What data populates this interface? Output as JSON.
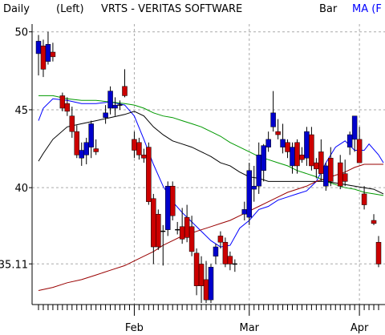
{
  "header": {
    "period": "Daily",
    "axis_side": "(Left)",
    "title": "VRTS - VERITAS SOFTWARE",
    "type_label": "Bar",
    "ma_label": "MA (F"
  },
  "colors": {
    "up": "#0000cc",
    "down": "#cc0000",
    "ma_blue": "#0000ff",
    "ma_black": "#000000",
    "ma_green": "#009900",
    "ma_red": "#990000",
    "grid": "#aaaaaa",
    "ma_label": "#0000ff"
  },
  "chart_data": {
    "type": "candlestick",
    "title": "VRTS - VERITAS SOFTWARE",
    "ylim": [
      32.5,
      50.5
    ],
    "yticks": [
      50,
      45,
      40,
      35.11
    ],
    "ytick_labels": [
      "50",
      "45",
      "40",
      "35.11"
    ],
    "xtick_labels": [
      "Feb",
      "Mar",
      "Apr"
    ],
    "xtick_index": [
      20,
      44,
      67
    ],
    "grid": true,
    "candles": [
      {
        "o": 48.6,
        "h": 49.8,
        "l": 47.2,
        "c": 49.4
      },
      {
        "o": 49.1,
        "h": 49.5,
        "l": 47.1,
        "c": 47.6
      },
      {
        "o": 48.1,
        "h": 50.0,
        "l": 47.9,
        "c": 49.2
      },
      {
        "o": 48.7,
        "h": 49.3,
        "l": 48.1,
        "c": 48.4
      },
      {
        "o": null,
        "h": null,
        "l": null,
        "c": null
      },
      {
        "o": 45.9,
        "h": 46.1,
        "l": 44.9,
        "c": 45.1
      },
      {
        "o": 45.4,
        "h": 45.8,
        "l": 44.6,
        "c": 44.9
      },
      {
        "o": 44.6,
        "h": 45.2,
        "l": 43.2,
        "c": 43.6
      },
      {
        "o": 43.6,
        "h": 44.0,
        "l": 41.9,
        "c": 42.1
      },
      {
        "o": 41.9,
        "h": 42.9,
        "l": 41.4,
        "c": 42.4
      },
      {
        "o": 42.1,
        "h": 43.2,
        "l": 41.5,
        "c": 42.9
      },
      {
        "o": 42.6,
        "h": 44.3,
        "l": 41.9,
        "c": 44.1
      },
      {
        "o": 42.5,
        "h": 43.1,
        "l": 42.1,
        "c": 42.3
      },
      {
        "o": null,
        "h": null,
        "l": null,
        "c": null
      },
      {
        "o": 44.5,
        "h": 45.3,
        "l": 44.1,
        "c": 44.8
      },
      {
        "o": 45.1,
        "h": 46.5,
        "l": 44.7,
        "c": 46.2
      },
      {
        "o": 45.1,
        "h": 45.8,
        "l": 44.6,
        "c": 45.3
      },
      {
        "o": 45.3,
        "h": 45.6,
        "l": 45.0,
        "c": 45.3
      },
      {
        "o": 46.5,
        "h": 47.6,
        "l": 45.8,
        "c": 45.9
      },
      {
        "o": null,
        "h": null,
        "l": null,
        "c": null
      },
      {
        "o": 43.1,
        "h": 43.6,
        "l": 41.9,
        "c": 42.4
      },
      {
        "o": 42.9,
        "h": 43.2,
        "l": 41.8,
        "c": 42.1
      },
      {
        "o": 42.1,
        "h": 42.5,
        "l": 41.6,
        "c": 41.9
      },
      {
        "o": 42.6,
        "h": 42.9,
        "l": 38.9,
        "c": 39.1
      },
      {
        "o": 39.3,
        "h": 39.6,
        "l": 35.1,
        "c": 36.2
      },
      {
        "o": 38.3,
        "h": 38.6,
        "l": 36.0,
        "c": 36.2
      },
      {
        "o": 37.2,
        "h": 37.6,
        "l": 35.0,
        "c": 37.2
      },
      {
        "o": 37.3,
        "h": 40.4,
        "l": 36.9,
        "c": 40.1
      },
      {
        "o": 40.1,
        "h": 40.4,
        "l": 37.9,
        "c": 38.2
      },
      {
        "o": 37.3,
        "h": 37.8,
        "l": 37.0,
        "c": 37.3
      },
      {
        "o": 37.5,
        "h": 38.7,
        "l": 36.4,
        "c": 36.7
      },
      {
        "o": 38.1,
        "h": 38.9,
        "l": 36.5,
        "c": 36.8
      },
      {
        "o": 37.5,
        "h": 38.2,
        "l": 35.6,
        "c": 35.9
      },
      {
        "o": 35.8,
        "h": 36.1,
        "l": 33.1,
        "c": 33.7
      },
      {
        "o": 35.1,
        "h": 35.6,
        "l": 32.6,
        "c": 33.7
      },
      {
        "o": 34.1,
        "h": 35.3,
        "l": 32.6,
        "c": 32.8
      },
      {
        "o": 32.8,
        "h": 35.1,
        "l": 32.6,
        "c": 34.9
      },
      {
        "o": 35.6,
        "h": 36.4,
        "l": 35.1,
        "c": 36.2
      },
      {
        "o": 36.9,
        "h": 37.2,
        "l": 36.1,
        "c": 36.5
      },
      {
        "o": 36.5,
        "h": 36.8,
        "l": 34.9,
        "c": 35.1
      },
      {
        "o": 35.6,
        "h": 35.9,
        "l": 34.7,
        "c": 35.1
      },
      {
        "o": 35.1,
        "h": 35.4,
        "l": 34.6,
        "c": 35.1
      },
      {
        "o": null,
        "h": null,
        "l": null,
        "c": null
      },
      {
        "o": 38.3,
        "h": 39.1,
        "l": 37.9,
        "c": 38.6
      },
      {
        "o": 38.1,
        "h": 41.6,
        "l": 37.6,
        "c": 41.1
      },
      {
        "o": 39.9,
        "h": 41.4,
        "l": 39.1,
        "c": 40.1
      },
      {
        "o": 40.1,
        "h": 42.9,
        "l": 39.6,
        "c": 42.1
      },
      {
        "o": 41.1,
        "h": 42.8,
        "l": 40.4,
        "c": 42.7
      },
      {
        "o": 42.6,
        "h": 43.6,
        "l": 42.3,
        "c": 43.1
      },
      {
        "o": 43.9,
        "h": 46.2,
        "l": 43.6,
        "c": 44.8
      },
      {
        "o": 43.6,
        "h": 44.4,
        "l": 43.1,
        "c": 43.4
      },
      {
        "o": 42.6,
        "h": 44.1,
        "l": 42.2,
        "c": 43.1
      },
      {
        "o": 42.9,
        "h": 43.1,
        "l": 41.9,
        "c": 42.3
      },
      {
        "o": 41.4,
        "h": 42.9,
        "l": 40.9,
        "c": 42.6
      },
      {
        "o": 42.9,
        "h": 43.1,
        "l": 40.9,
        "c": 41.4
      },
      {
        "o": 42.1,
        "h": 42.6,
        "l": 41.6,
        "c": 41.8
      },
      {
        "o": 41.9,
        "h": 43.9,
        "l": 41.4,
        "c": 43.6
      },
      {
        "o": 43.4,
        "h": 43.9,
        "l": 41.1,
        "c": 41.4
      },
      {
        "o": 41.6,
        "h": 41.9,
        "l": 40.6,
        "c": 41.2
      },
      {
        "o": 42.3,
        "h": 43.1,
        "l": 40.4,
        "c": 40.9
      },
      {
        "o": 40.1,
        "h": 41.6,
        "l": 39.8,
        "c": 41.4
      },
      {
        "o": 41.9,
        "h": 42.6,
        "l": 40.1,
        "c": 40.4
      },
      {
        "o": null,
        "h": null,
        "l": null,
        "c": null
      },
      {
        "o": 41.6,
        "h": 42.1,
        "l": 39.9,
        "c": 40.1
      },
      {
        "o": 40.9,
        "h": 41.8,
        "l": 40.1,
        "c": 40.4
      },
      {
        "o": 42.6,
        "h": 43.6,
        "l": 42.1,
        "c": 43.4
      },
      {
        "o": 43.1,
        "h": 44.6,
        "l": 42.3,
        "c": 44.6
      },
      {
        "o": 43.1,
        "h": 43.9,
        "l": 41.6,
        "c": 41.6
      },
      {
        "o": 39.6,
        "h": 40.1,
        "l": 38.6,
        "c": 38.9
      },
      {
        "o": null,
        "h": null,
        "l": null,
        "c": null
      },
      {
        "o": 37.9,
        "h": 38.3,
        "l": 37.6,
        "c": 37.7
      },
      {
        "o": 36.5,
        "h": 36.9,
        "l": 34.9,
        "c": 35.1
      }
    ],
    "series": [
      {
        "color": "blue",
        "points": [
          [
            0,
            44.3
          ],
          [
            1,
            45.1
          ],
          [
            3,
            45.7
          ],
          [
            6,
            45.6
          ],
          [
            9,
            45.4
          ],
          [
            12,
            45.4
          ],
          [
            15,
            45.5
          ],
          [
            18,
            45.3
          ],
          [
            20,
            44.6
          ],
          [
            22,
            43.1
          ],
          [
            24,
            41.5
          ],
          [
            26,
            40.1
          ],
          [
            28,
            39.1
          ],
          [
            30,
            38.4
          ],
          [
            32,
            37.8
          ],
          [
            34,
            37.2
          ],
          [
            36,
            36.6
          ],
          [
            38,
            36.2
          ],
          [
            40,
            36.3
          ],
          [
            42,
            37.4
          ],
          [
            44,
            37.9
          ],
          [
            46,
            38.6
          ],
          [
            48,
            38.8
          ],
          [
            50,
            39.2
          ],
          [
            52,
            39.4
          ],
          [
            54,
            39.6
          ],
          [
            56,
            39.8
          ],
          [
            58,
            40.4
          ],
          [
            60,
            41.6
          ],
          [
            62,
            42.6
          ],
          [
            64,
            43.0
          ],
          [
            66,
            42.4
          ],
          [
            68,
            42.4
          ],
          [
            69,
            42.8
          ],
          [
            71,
            42.1
          ],
          [
            72,
            41.6
          ]
        ]
      },
      {
        "color": "black",
        "points": [
          [
            0,
            41.7
          ],
          [
            1,
            42.2
          ],
          [
            3,
            43.1
          ],
          [
            6,
            43.9
          ],
          [
            9,
            44.1
          ],
          [
            12,
            44.3
          ],
          [
            15,
            44.5
          ],
          [
            18,
            44.7
          ],
          [
            20,
            44.9
          ],
          [
            22,
            44.6
          ],
          [
            24,
            43.9
          ],
          [
            26,
            43.4
          ],
          [
            28,
            43.0
          ],
          [
            30,
            42.8
          ],
          [
            32,
            42.6
          ],
          [
            34,
            42.3
          ],
          [
            36,
            42.0
          ],
          [
            38,
            41.6
          ],
          [
            40,
            41.4
          ],
          [
            42,
            41.0
          ],
          [
            44,
            40.7
          ],
          [
            46,
            40.6
          ],
          [
            48,
            40.4
          ],
          [
            50,
            40.4
          ],
          [
            52,
            40.4
          ],
          [
            54,
            40.4
          ],
          [
            56,
            40.4
          ],
          [
            58,
            40.4
          ],
          [
            60,
            40.4
          ],
          [
            62,
            40.3
          ],
          [
            64,
            40.2
          ],
          [
            66,
            40.1
          ],
          [
            68,
            40.0
          ],
          [
            70,
            39.9
          ],
          [
            72,
            39.6
          ]
        ]
      },
      {
        "color": "green",
        "points": [
          [
            0,
            45.9
          ],
          [
            3,
            45.9
          ],
          [
            6,
            45.7
          ],
          [
            9,
            45.6
          ],
          [
            12,
            45.6
          ],
          [
            15,
            45.5
          ],
          [
            18,
            45.4
          ],
          [
            20,
            45.3
          ],
          [
            22,
            45.1
          ],
          [
            24,
            44.8
          ],
          [
            26,
            44.6
          ],
          [
            28,
            44.5
          ],
          [
            30,
            44.3
          ],
          [
            32,
            44.1
          ],
          [
            34,
            43.9
          ],
          [
            36,
            43.6
          ],
          [
            38,
            43.3
          ],
          [
            40,
            42.9
          ],
          [
            42,
            42.6
          ],
          [
            44,
            42.3
          ],
          [
            46,
            42.0
          ],
          [
            48,
            41.8
          ],
          [
            50,
            41.6
          ],
          [
            52,
            41.4
          ],
          [
            54,
            41.1
          ],
          [
            56,
            40.9
          ],
          [
            58,
            40.7
          ],
          [
            60,
            40.4
          ],
          [
            62,
            40.2
          ],
          [
            64,
            40.0
          ],
          [
            66,
            39.9
          ],
          [
            68,
            39.7
          ],
          [
            70,
            39.6
          ],
          [
            72,
            39.5
          ]
        ]
      },
      {
        "color": "red",
        "points": [
          [
            0,
            33.4
          ],
          [
            3,
            33.6
          ],
          [
            6,
            33.9
          ],
          [
            9,
            34.1
          ],
          [
            12,
            34.4
          ],
          [
            15,
            34.7
          ],
          [
            18,
            35.0
          ],
          [
            20,
            35.3
          ],
          [
            22,
            35.6
          ],
          [
            24,
            35.9
          ],
          [
            26,
            36.3
          ],
          [
            28,
            36.6
          ],
          [
            30,
            36.9
          ],
          [
            32,
            37.1
          ],
          [
            34,
            37.3
          ],
          [
            36,
            37.5
          ],
          [
            38,
            37.7
          ],
          [
            40,
            37.9
          ],
          [
            42,
            38.2
          ],
          [
            44,
            38.5
          ],
          [
            46,
            38.8
          ],
          [
            48,
            39.1
          ],
          [
            50,
            39.4
          ],
          [
            52,
            39.7
          ],
          [
            54,
            39.9
          ],
          [
            56,
            40.1
          ],
          [
            58,
            40.4
          ],
          [
            60,
            40.6
          ],
          [
            62,
            40.8
          ],
          [
            64,
            41.0
          ],
          [
            66,
            41.3
          ],
          [
            68,
            41.5
          ],
          [
            70,
            41.5
          ],
          [
            72,
            41.5
          ]
        ]
      }
    ]
  }
}
